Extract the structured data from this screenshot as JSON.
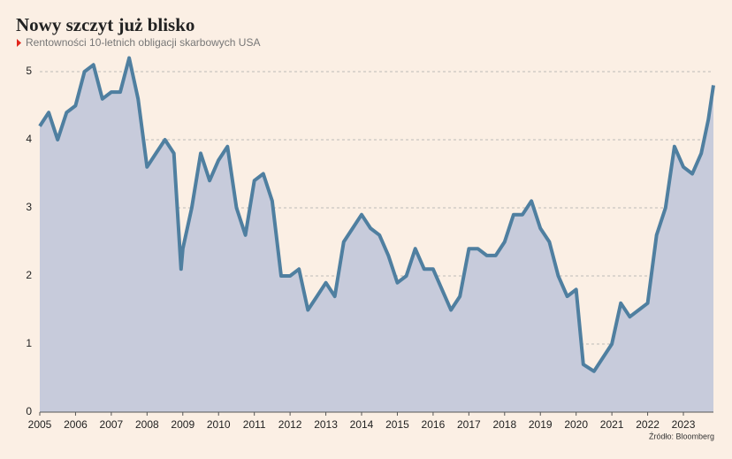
{
  "chart_data": {
    "type": "area",
    "title": "Nowy szczyt już blisko",
    "subtitle": "Rentowności 10-letnich obligacji skarbowych USA",
    "source": "Źródło: Bloomberg",
    "x": [
      2005,
      2005.25,
      2005.5,
      2005.75,
      2006,
      2006.25,
      2006.5,
      2006.75,
      2007,
      2007.25,
      2007.5,
      2007.75,
      2008,
      2008.25,
      2008.5,
      2008.75,
      2008.95,
      2009,
      2009.25,
      2009.5,
      2009.75,
      2010,
      2010.25,
      2010.5,
      2010.75,
      2011,
      2011.25,
      2011.5,
      2011.75,
      2012,
      2012.25,
      2012.5,
      2012.75,
      2013,
      2013.25,
      2013.5,
      2013.75,
      2014,
      2014.25,
      2014.5,
      2014.75,
      2015,
      2015.25,
      2015.5,
      2015.75,
      2016,
      2016.25,
      2016.5,
      2016.75,
      2017,
      2017.25,
      2017.5,
      2017.75,
      2018,
      2018.25,
      2018.5,
      2018.75,
      2019,
      2019.25,
      2019.5,
      2019.75,
      2020,
      2020.2,
      2020.5,
      2020.75,
      2021,
      2021.25,
      2021.5,
      2021.75,
      2022,
      2022.25,
      2022.5,
      2022.75,
      2023,
      2023.25,
      2023.5,
      2023.7,
      2023.84
    ],
    "series": [
      {
        "name": "Rentowność",
        "color": "#4f7fa0",
        "fill": "#c7cbdb",
        "values": [
          4.2,
          4.4,
          4.0,
          4.4,
          4.5,
          5.0,
          5.1,
          4.6,
          4.7,
          4.7,
          5.2,
          4.6,
          3.6,
          3.8,
          4.0,
          3.8,
          2.1,
          2.4,
          3.0,
          3.8,
          3.4,
          3.7,
          3.9,
          3.0,
          2.6,
          3.4,
          3.5,
          3.1,
          2.0,
          2.0,
          2.1,
          1.5,
          1.7,
          1.9,
          1.7,
          2.5,
          2.7,
          2.9,
          2.7,
          2.6,
          2.3,
          1.9,
          2.0,
          2.4,
          2.1,
          2.1,
          1.8,
          1.5,
          1.7,
          2.4,
          2.4,
          2.3,
          2.3,
          2.5,
          2.9,
          2.9,
          3.1,
          2.7,
          2.5,
          2.0,
          1.7,
          1.8,
          0.7,
          0.6,
          0.8,
          1.0,
          1.6,
          1.4,
          1.5,
          1.6,
          2.6,
          3.0,
          3.9,
          3.6,
          3.5,
          3.8,
          4.3,
          4.8
        ]
      }
    ],
    "xlim": [
      2005,
      2023.84
    ],
    "xticks": [
      2005,
      2006,
      2007,
      2008,
      2009,
      2010,
      2011,
      2012,
      2013,
      2014,
      2015,
      2016,
      2017,
      2018,
      2019,
      2020,
      2021,
      2022,
      2023
    ],
    "ylim": [
      0,
      5.5
    ],
    "yticks": [
      0,
      1,
      2,
      3,
      4,
      5
    ],
    "grid": true
  }
}
